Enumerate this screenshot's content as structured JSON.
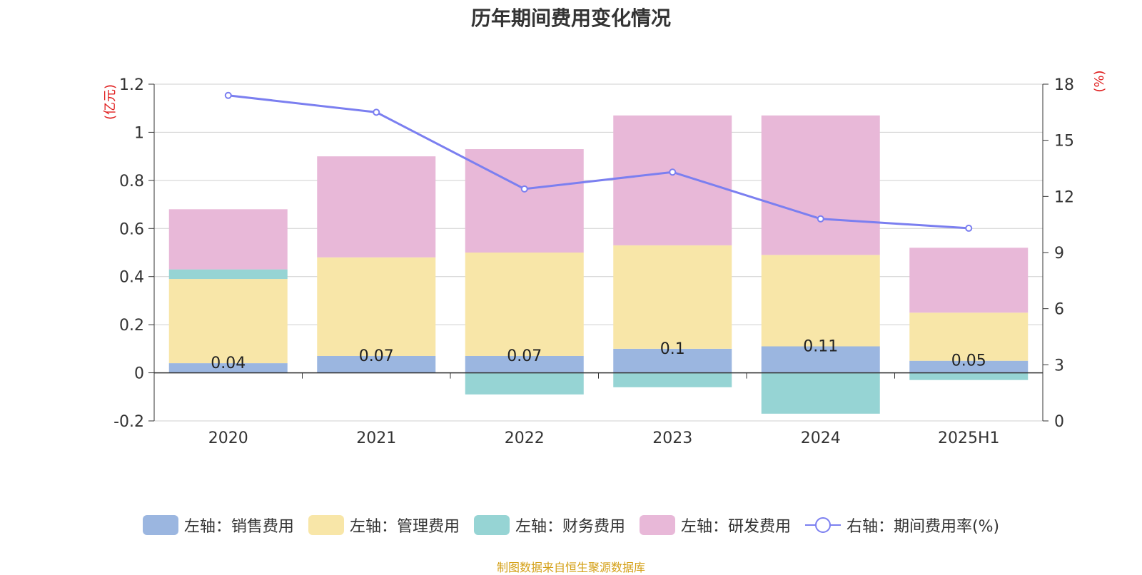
{
  "chart_data": {
    "type": "bar",
    "title": "历年期间费用变化情况",
    "categories": [
      "2020",
      "2021",
      "2022",
      "2023",
      "2024",
      "2025H1"
    ],
    "left_axis": {
      "unit": "(亿元)",
      "ylim": [
        -0.2,
        1.2
      ],
      "ticks": [
        "1.2",
        "1",
        "0.8",
        "0.6",
        "0.4",
        "0.2",
        "0",
        "-0.2"
      ]
    },
    "right_axis": {
      "unit": "(%)",
      "ylim": [
        0,
        18
      ],
      "ticks": [
        "18",
        "15",
        "12",
        "9",
        "6",
        "3",
        "0"
      ]
    },
    "series": [
      {
        "name": "左轴：销售费用",
        "type": "bar",
        "axis": "left",
        "color": "#9bb6e0",
        "values": [
          0.04,
          0.07,
          0.07,
          0.1,
          0.11,
          0.05
        ],
        "labels": [
          "0.04",
          "0.07",
          "0.07",
          "0.1",
          "0.11",
          "0.05"
        ]
      },
      {
        "name": "左轴：管理费用",
        "type": "bar",
        "axis": "left",
        "color": "#f8e6a8",
        "values": [
          0.35,
          0.41,
          0.43,
          0.43,
          0.38,
          0.2
        ]
      },
      {
        "name": "左轴：财务费用",
        "type": "bar",
        "axis": "left",
        "color": "#96d4d4",
        "values": [
          0.04,
          0.0,
          -0.09,
          -0.06,
          -0.17,
          -0.03
        ]
      },
      {
        "name": "左轴：研发费用",
        "type": "bar",
        "axis": "left",
        "color": "#e8b8d8",
        "values": [
          0.25,
          0.42,
          0.43,
          0.54,
          0.58,
          0.27
        ]
      },
      {
        "name": "右轴：期间费用率(%)",
        "type": "line",
        "axis": "right",
        "color": "#7b7ff0",
        "values": [
          17.4,
          16.5,
          12.4,
          13.3,
          10.8,
          10.3
        ]
      }
    ],
    "grid": true,
    "legend_position": "bottom"
  },
  "footer": {
    "source": "制图数据来自恒生聚源数据库"
  }
}
